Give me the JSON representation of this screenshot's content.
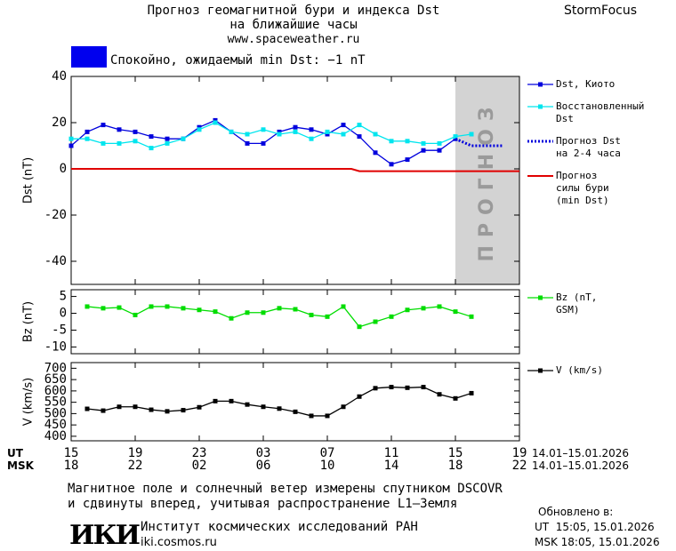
{
  "header": {
    "title": "Прогноз геомагнитной бури и индекса Dst",
    "subtitle": "на ближайшие часы",
    "url": "www.spaceweather.ru",
    "brand": "StormFocus"
  },
  "status": {
    "color": "#0000ee",
    "text": "Спокойно, ожидаемый min Dst: −1 nT"
  },
  "chart_data": [
    {
      "type": "line",
      "y_label": "Dst (nT)",
      "xlim": [
        0,
        28
      ],
      "ylim": [
        -50,
        40
      ],
      "yticks": [
        40,
        20,
        0,
        -20,
        -40
      ],
      "grid": false,
      "forecast_zone": {
        "x_range": [
          24,
          28
        ],
        "label": "ПРОГНОЗ",
        "color": "#d3d3d3"
      },
      "series": [
        {
          "name": "Dst, Киото",
          "color": "#0000dd",
          "marker": "square",
          "line_style": "solid",
          "x": [
            0,
            1,
            2,
            3,
            4,
            5,
            6,
            7,
            8,
            9,
            10,
            11,
            12,
            13,
            14,
            15,
            16,
            17,
            18,
            19,
            20,
            21,
            22,
            23,
            24
          ],
          "values": [
            10,
            16,
            19,
            17,
            16,
            14,
            13,
            13,
            18,
            21,
            16,
            11,
            11,
            16,
            18,
            17,
            15,
            19,
            14,
            7,
            2,
            4,
            8,
            8,
            13
          ]
        },
        {
          "name": "Восстановленный Dst",
          "color": "#00e5ee",
          "marker": "square",
          "line_style": "solid",
          "x": [
            0,
            1,
            2,
            3,
            4,
            5,
            6,
            7,
            8,
            9,
            10,
            11,
            12,
            13,
            14,
            15,
            16,
            17,
            18,
            19,
            20,
            21,
            22,
            23,
            24,
            25
          ],
          "values": [
            13,
            13,
            11,
            11,
            12,
            9,
            11,
            13,
            17,
            20,
            16,
            15,
            17,
            15,
            16,
            13,
            16,
            15,
            19,
            15,
            12,
            12,
            11,
            11,
            14,
            15
          ]
        },
        {
          "name": "Прогноз Dst на 2-4 часа",
          "color": "#0000dd",
          "marker": "none",
          "line_style": "dotted",
          "x": [
            24,
            25,
            26,
            27
          ],
          "values": [
            13,
            10,
            10,
            10
          ]
        },
        {
          "name": "Прогноз силы бури (min Dst)",
          "color": "#e00000",
          "marker": "none",
          "line_style": "solid",
          "x": [
            0,
            17.5,
            18,
            28
          ],
          "values": [
            0,
            0,
            -1,
            -1
          ]
        }
      ]
    },
    {
      "type": "line",
      "y_label": "Bz (nT)",
      "xlim": [
        0,
        28
      ],
      "ylim": [
        -12,
        7
      ],
      "yticks": [
        5,
        0,
        -5,
        -10
      ],
      "grid": false,
      "series": [
        {
          "name": "Bz (nT, GSM)",
          "color": "#00dd00",
          "marker": "square",
          "line_style": "solid",
          "x": [
            1,
            2,
            3,
            4,
            5,
            6,
            7,
            8,
            9,
            10,
            11,
            12,
            13,
            14,
            15,
            16,
            17,
            18,
            19,
            20,
            21,
            22,
            23,
            24,
            25
          ],
          "values": [
            2,
            1.5,
            1.7,
            -0.5,
            2,
            2,
            1.5,
            1,
            0.5,
            -1.5,
            0.2,
            0.2,
            1.5,
            1.2,
            -0.5,
            -1,
            2,
            -4,
            -2.5,
            -1,
            1,
            1.5,
            2,
            0.5,
            -1
          ]
        }
      ]
    },
    {
      "type": "line",
      "y_label": "V (km/s)",
      "xlim": [
        0,
        28
      ],
      "ylim": [
        380,
        725
      ],
      "yticks": [
        700,
        650,
        600,
        550,
        500,
        450,
        400
      ],
      "grid": false,
      "xticks": [
        {
          "value": 0,
          "label": "15"
        },
        {
          "value": 4,
          "label": "19"
        },
        {
          "value": 8,
          "label": "23"
        },
        {
          "value": 12,
          "label": "03"
        },
        {
          "value": 16,
          "label": "07"
        },
        {
          "value": 20,
          "label": "11"
        },
        {
          "value": 24,
          "label": "15"
        },
        {
          "value": 28,
          "label": "19"
        }
      ],
      "xticks_msk": [
        {
          "value": 0,
          "label": "18"
        },
        {
          "value": 4,
          "label": "22"
        },
        {
          "value": 8,
          "label": "02"
        },
        {
          "value": 12,
          "label": "06"
        },
        {
          "value": 16,
          "label": "10"
        },
        {
          "value": 20,
          "label": "14"
        },
        {
          "value": 24,
          "label": "18"
        },
        {
          "value": 28,
          "label": "22"
        }
      ],
      "x_row_ut": "UT",
      "x_row_msk": "MSK",
      "date_range_ut": "14.01–15.01.2026",
      "date_range_msk": "14.01–15.01.2026",
      "series": [
        {
          "name": "V (km/s)",
          "color": "#000000",
          "marker": "square",
          "line_style": "solid",
          "x": [
            1,
            2,
            3,
            4,
            5,
            6,
            7,
            8,
            9,
            10,
            11,
            12,
            13,
            14,
            15,
            16,
            17,
            18,
            19,
            20,
            21,
            22,
            23,
            24,
            25
          ],
          "values": [
            521,
            513,
            530,
            530,
            517,
            510,
            515,
            528,
            555,
            555,
            540,
            530,
            522,
            508,
            490,
            490,
            530,
            575,
            612,
            617,
            614,
            617,
            585,
            567,
            590
          ]
        }
      ]
    }
  ],
  "footer": {
    "note_line1": "Магнитное поле и солнечный ветер измерены спутником DSCOVR",
    "note_line2": "и сдвинуты вперед, учитывая распространение L1–Земля",
    "logo": "ИКИ",
    "institute": "Институт космических исследований РАН",
    "institute_url": "iki.cosmos.ru",
    "updated_title": "Обновлено в:",
    "updated_ut": "UT  15:05, 15.01.2026",
    "updated_msk": "MSK 18:05, 15.01.2026"
  }
}
